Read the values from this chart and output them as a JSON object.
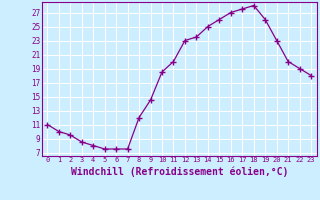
{
  "x": [
    0,
    1,
    2,
    3,
    4,
    5,
    6,
    7,
    8,
    9,
    10,
    11,
    12,
    13,
    14,
    15,
    16,
    17,
    18,
    19,
    20,
    21,
    22,
    23
  ],
  "y": [
    11,
    10,
    9.5,
    8.5,
    8,
    7.5,
    7.5,
    7.5,
    12,
    14.5,
    18.5,
    20,
    23,
    23.5,
    25,
    26,
    27,
    27.5,
    28,
    26,
    23,
    20,
    19,
    18
  ],
  "line_color": "#880088",
  "marker": "+",
  "marker_size": 4,
  "bg_color": "#cceeff",
  "grid_color": "#ffffff",
  "xlabel": "Windchill (Refroidissement éolien,°C)",
  "xlabel_fontsize": 7,
  "ylabel_ticks": [
    7,
    9,
    11,
    13,
    15,
    17,
    19,
    21,
    23,
    25,
    27
  ],
  "xlim": [
    -0.5,
    23.5
  ],
  "ylim": [
    6.5,
    28.5
  ],
  "xtick_labels": [
    "0",
    "1",
    "2",
    "3",
    "4",
    "5",
    "6",
    "7",
    "8",
    "9",
    "10",
    "11",
    "12",
    "13",
    "14",
    "15",
    "16",
    "17",
    "18",
    "19",
    "20",
    "21",
    "22",
    "23"
  ]
}
